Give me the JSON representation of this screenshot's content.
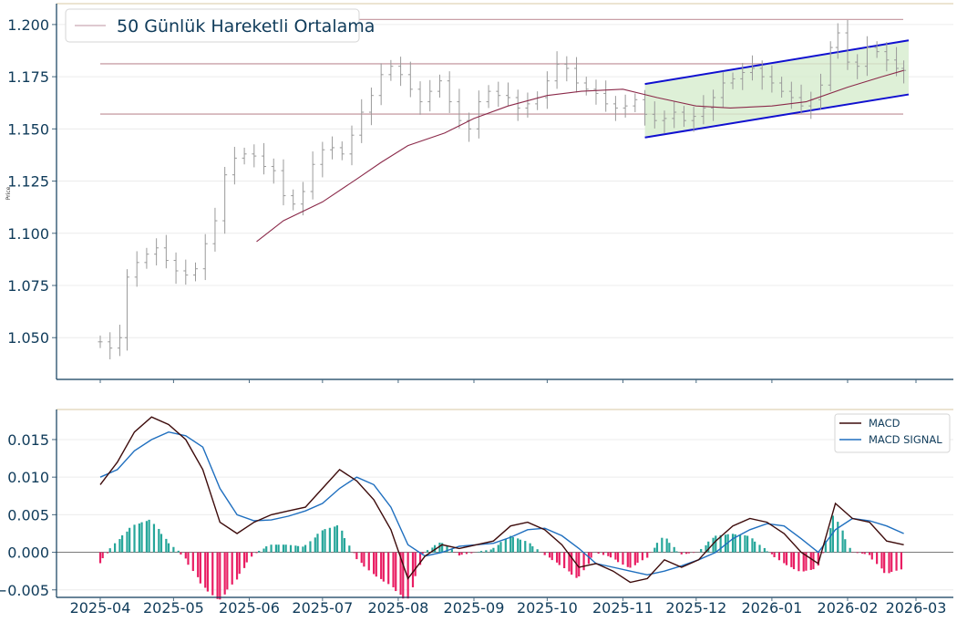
{
  "chart_data": [
    {
      "type": "ohlc",
      "title": "",
      "ylabel": "Price",
      "xlabel": "",
      "ylim": [
        1.03,
        1.21
      ],
      "yticks": [
        "1.050",
        "1.075",
        "1.100",
        "1.125",
        "1.150",
        "1.175",
        "1.200"
      ],
      "xticks": [
        "2025-04",
        "2025-05",
        "2025-06",
        "2025-07",
        "2025-08",
        "2025-09",
        "2025-10",
        "2025-11",
        "2025-12",
        "2026-01",
        "2026-02",
        "2026-03"
      ],
      "legend": {
        "position": "top-left",
        "entries": [
          "50 Günlük Hareketli Ortalama"
        ]
      },
      "grid": true,
      "horizontal_levels": [
        1.2024,
        1.1812,
        1.1571
      ],
      "channel": {
        "upper": {
          "from": [
            "2025-11-10",
            1.1715
          ],
          "to": [
            "2026-02-26",
            1.1924
          ]
        },
        "lower": {
          "from": [
            "2025-11-10",
            1.1459
          ],
          "to": [
            "2026-02-26",
            1.1665
          ]
        }
      },
      "price_close": [
        [
          "2025-04-01",
          1.048
        ],
        [
          "2025-04-05",
          1.045
        ],
        [
          "2025-04-09",
          1.05
        ],
        [
          "2025-04-12",
          1.079
        ],
        [
          "2025-04-16",
          1.086
        ],
        [
          "2025-04-20",
          1.09
        ],
        [
          "2025-04-24",
          1.093
        ],
        [
          "2025-04-28",
          1.087
        ],
        [
          "2025-05-02",
          1.082
        ],
        [
          "2025-05-06",
          1.08
        ],
        [
          "2025-05-10",
          1.083
        ],
        [
          "2025-05-14",
          1.095
        ],
        [
          "2025-05-18",
          1.106
        ],
        [
          "2025-05-22",
          1.128
        ],
        [
          "2025-05-26",
          1.136
        ],
        [
          "2025-05-30",
          1.138
        ],
        [
          "2025-06-03",
          1.137
        ],
        [
          "2025-06-07",
          1.132
        ],
        [
          "2025-06-11",
          1.13
        ],
        [
          "2025-06-15",
          1.118
        ],
        [
          "2025-06-19",
          1.114
        ],
        [
          "2025-06-23",
          1.12
        ],
        [
          "2025-06-27",
          1.133
        ],
        [
          "2025-07-01",
          1.14
        ],
        [
          "2025-07-05",
          1.141
        ],
        [
          "2025-07-09",
          1.138
        ],
        [
          "2025-07-13",
          1.147
        ],
        [
          "2025-07-17",
          1.158
        ],
        [
          "2025-07-21",
          1.166
        ],
        [
          "2025-07-25",
          1.176
        ],
        [
          "2025-07-29",
          1.18
        ],
        [
          "2025-08-02",
          1.176
        ],
        [
          "2025-08-06",
          1.169
        ],
        [
          "2025-08-10",
          1.163
        ],
        [
          "2025-08-14",
          1.168
        ],
        [
          "2025-08-18",
          1.173
        ],
        [
          "2025-08-22",
          1.163
        ],
        [
          "2025-08-26",
          1.154
        ],
        [
          "2025-08-30",
          1.15
        ],
        [
          "2025-09-03",
          1.163
        ],
        [
          "2025-09-07",
          1.168
        ],
        [
          "2025-09-11",
          1.166
        ],
        [
          "2025-09-15",
          1.165
        ],
        [
          "2025-09-19",
          1.16
        ],
        [
          "2025-09-23",
          1.162
        ],
        [
          "2025-09-27",
          1.165
        ],
        [
          "2025-10-01",
          1.173
        ],
        [
          "2025-10-05",
          1.181
        ],
        [
          "2025-10-09",
          1.179
        ],
        [
          "2025-10-13",
          1.172
        ],
        [
          "2025-10-17",
          1.169
        ],
        [
          "2025-10-21",
          1.167
        ],
        [
          "2025-10-25",
          1.162
        ],
        [
          "2025-10-29",
          1.16
        ],
        [
          "2025-11-02",
          1.161
        ],
        [
          "2025-11-06",
          1.164
        ],
        [
          "2025-11-10",
          1.157
        ],
        [
          "2025-11-14",
          1.154
        ],
        [
          "2025-11-18",
          1.155
        ],
        [
          "2025-11-22",
          1.158
        ],
        [
          "2025-11-26",
          1.154
        ],
        [
          "2025-11-30",
          1.156
        ],
        [
          "2025-12-04",
          1.16
        ],
        [
          "2025-12-08",
          1.165
        ],
        [
          "2025-12-12",
          1.172
        ],
        [
          "2025-12-16",
          1.174
        ],
        [
          "2025-12-20",
          1.177
        ],
        [
          "2025-12-24",
          1.179
        ],
        [
          "2025-12-28",
          1.175
        ],
        [
          "2026-01-01",
          1.172
        ],
        [
          "2026-01-05",
          1.168
        ],
        [
          "2026-01-09",
          1.165
        ],
        [
          "2026-01-13",
          1.161
        ],
        [
          "2026-01-17",
          1.164
        ],
        [
          "2026-01-21",
          1.171
        ],
        [
          "2026-01-25",
          1.189
        ],
        [
          "2026-01-28",
          1.196
        ],
        [
          "2026-02-01",
          1.182
        ],
        [
          "2026-02-05",
          1.18
        ],
        [
          "2026-02-09",
          1.189
        ],
        [
          "2026-02-13",
          1.187
        ],
        [
          "2026-02-17",
          1.183
        ],
        [
          "2026-02-21",
          1.179
        ],
        [
          "2026-02-24",
          1.178
        ]
      ],
      "ma50": [
        [
          "2025-06-04",
          1.096
        ],
        [
          "2025-06-15",
          1.106
        ],
        [
          "2025-07-01",
          1.115
        ],
        [
          "2025-07-15",
          1.126
        ],
        [
          "2025-07-25",
          1.134
        ],
        [
          "2025-08-05",
          1.142
        ],
        [
          "2025-08-20",
          1.148
        ],
        [
          "2025-09-01",
          1.155
        ],
        [
          "2025-09-15",
          1.161
        ],
        [
          "2025-10-01",
          1.166
        ],
        [
          "2025-10-15",
          1.168
        ],
        [
          "2025-11-01",
          1.169
        ],
        [
          "2025-11-15",
          1.165
        ],
        [
          "2025-12-01",
          1.161
        ],
        [
          "2025-12-15",
          1.16
        ],
        [
          "2026-01-01",
          1.161
        ],
        [
          "2026-01-15",
          1.163
        ],
        [
          "2026-02-01",
          1.17
        ],
        [
          "2026-02-15",
          1.175
        ],
        [
          "2026-02-24",
          1.178
        ]
      ]
    },
    {
      "type": "line+bar",
      "title": "",
      "ylim": [
        -0.006,
        0.019
      ],
      "yticks": [
        "−0.005",
        "0.000",
        "0.005",
        "0.010",
        "0.015"
      ],
      "legend": {
        "position": "top-right",
        "entries": [
          "MACD",
          "MACD SIGNAL"
        ]
      },
      "grid": true,
      "series": [
        {
          "name": "MACD",
          "color": "#3d0b0b",
          "points": [
            [
              "2025-04-01",
              0.009
            ],
            [
              "2025-04-08",
              0.012
            ],
            [
              "2025-04-15",
              0.016
            ],
            [
              "2025-04-22",
              0.018
            ],
            [
              "2025-04-29",
              0.017
            ],
            [
              "2025-05-06",
              0.015
            ],
            [
              "2025-05-13",
              0.011
            ],
            [
              "2025-05-20",
              0.004
            ],
            [
              "2025-05-27",
              0.0025
            ],
            [
              "2025-06-03",
              0.004
            ],
            [
              "2025-06-10",
              0.005
            ],
            [
              "2025-06-17",
              0.0055
            ],
            [
              "2025-06-24",
              0.006
            ],
            [
              "2025-07-01",
              0.0085
            ],
            [
              "2025-07-08",
              0.011
            ],
            [
              "2025-07-15",
              0.0095
            ],
            [
              "2025-07-22",
              0.007
            ],
            [
              "2025-07-29",
              0.003
            ],
            [
              "2025-08-05",
              -0.0035
            ],
            [
              "2025-08-12",
              -0.0005
            ],
            [
              "2025-08-19",
              0.001
            ],
            [
              "2025-08-26",
              0.0005
            ],
            [
              "2025-09-02",
              0.001
            ],
            [
              "2025-09-09",
              0.0015
            ],
            [
              "2025-09-16",
              0.0035
            ],
            [
              "2025-09-23",
              0.004
            ],
            [
              "2025-09-30",
              0.003
            ],
            [
              "2025-10-07",
              0.001
            ],
            [
              "2025-10-14",
              -0.002
            ],
            [
              "2025-10-21",
              -0.0015
            ],
            [
              "2025-10-28",
              -0.0025
            ],
            [
              "2025-11-04",
              -0.004
            ],
            [
              "2025-11-11",
              -0.0035
            ],
            [
              "2025-11-18",
              -0.001
            ],
            [
              "2025-11-25",
              -0.002
            ],
            [
              "2025-12-02",
              -0.001
            ],
            [
              "2025-12-09",
              0.0015
            ],
            [
              "2025-12-16",
              0.0035
            ],
            [
              "2025-12-23",
              0.0045
            ],
            [
              "2025-12-30",
              0.004
            ],
            [
              "2026-01-06",
              0.0025
            ],
            [
              "2026-01-13",
              0.0
            ],
            [
              "2026-01-20",
              -0.0015
            ],
            [
              "2026-01-27",
              0.0065
            ],
            [
              "2026-02-03",
              0.0045
            ],
            [
              "2026-02-10",
              0.004
            ],
            [
              "2026-02-17",
              0.0015
            ],
            [
              "2026-02-24",
              0.001
            ]
          ]
        },
        {
          "name": "MACD SIGNAL",
          "color": "#1f6fbf",
          "points": [
            [
              "2025-04-01",
              0.01
            ],
            [
              "2025-04-08",
              0.011
            ],
            [
              "2025-04-15",
              0.0135
            ],
            [
              "2025-04-22",
              0.015
            ],
            [
              "2025-04-29",
              0.016
            ],
            [
              "2025-05-06",
              0.0155
            ],
            [
              "2025-05-13",
              0.014
            ],
            [
              "2025-05-20",
              0.0085
            ],
            [
              "2025-05-27",
              0.005
            ],
            [
              "2025-06-03",
              0.0042
            ],
            [
              "2025-06-10",
              0.0043
            ],
            [
              "2025-06-17",
              0.0048
            ],
            [
              "2025-06-24",
              0.0055
            ],
            [
              "2025-07-01",
              0.0065
            ],
            [
              "2025-07-08",
              0.0085
            ],
            [
              "2025-07-15",
              0.01
            ],
            [
              "2025-07-22",
              0.009
            ],
            [
              "2025-07-29",
              0.006
            ],
            [
              "2025-08-05",
              0.001
            ],
            [
              "2025-08-12",
              -0.0005
            ],
            [
              "2025-08-19",
              0.0
            ],
            [
              "2025-08-26",
              0.0008
            ],
            [
              "2025-09-02",
              0.001
            ],
            [
              "2025-09-09",
              0.0012
            ],
            [
              "2025-09-16",
              0.002
            ],
            [
              "2025-09-23",
              0.003
            ],
            [
              "2025-09-30",
              0.0032
            ],
            [
              "2025-10-07",
              0.0022
            ],
            [
              "2025-10-14",
              0.0005
            ],
            [
              "2025-10-21",
              -0.0015
            ],
            [
              "2025-10-28",
              -0.002
            ],
            [
              "2025-11-04",
              -0.0025
            ],
            [
              "2025-11-11",
              -0.003
            ],
            [
              "2025-11-18",
              -0.0025
            ],
            [
              "2025-11-25",
              -0.0018
            ],
            [
              "2025-12-02",
              -0.001
            ],
            [
              "2025-12-09",
              0.0
            ],
            [
              "2025-12-16",
              0.0018
            ],
            [
              "2025-12-23",
              0.003
            ],
            [
              "2025-12-30",
              0.0038
            ],
            [
              "2026-01-06",
              0.0035
            ],
            [
              "2026-01-13",
              0.0018
            ],
            [
              "2026-01-20",
              0.0
            ],
            [
              "2026-01-27",
              0.003
            ],
            [
              "2026-02-03",
              0.0045
            ],
            [
              "2026-02-10",
              0.0042
            ],
            [
              "2026-02-17",
              0.0035
            ],
            [
              "2026-02-24",
              0.0025
            ]
          ]
        }
      ],
      "histogram_colors": {
        "positive": "#26a69a",
        "negative": "#e91e63"
      }
    }
  ]
}
